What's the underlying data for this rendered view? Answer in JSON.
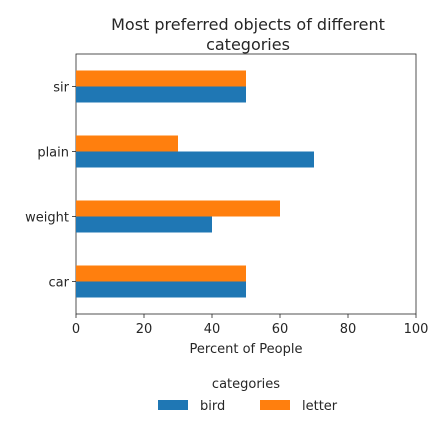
{
  "chart_data": {
    "type": "bar",
    "orientation": "horizontal",
    "title": "Most preferred objects of different categories",
    "title_lines": [
      "Most preferred objects of different",
      "categories"
    ],
    "xlabel": "Percent of People",
    "ylabel": "",
    "xlim": [
      0,
      100
    ],
    "xticks": [
      0,
      20,
      40,
      60,
      80,
      100
    ],
    "categories": [
      "sir",
      "plain",
      "weight",
      "car"
    ],
    "series": [
      {
        "name": "bird",
        "color": "#1f77b4",
        "values": [
          50,
          70,
          40,
          50
        ]
      },
      {
        "name": "letter",
        "color": "#ff7f0e",
        "values": [
          50,
          30,
          60,
          50
        ]
      }
    ],
    "legend": {
      "title": "categories",
      "placement": "bottom-center"
    },
    "grid": false
  }
}
